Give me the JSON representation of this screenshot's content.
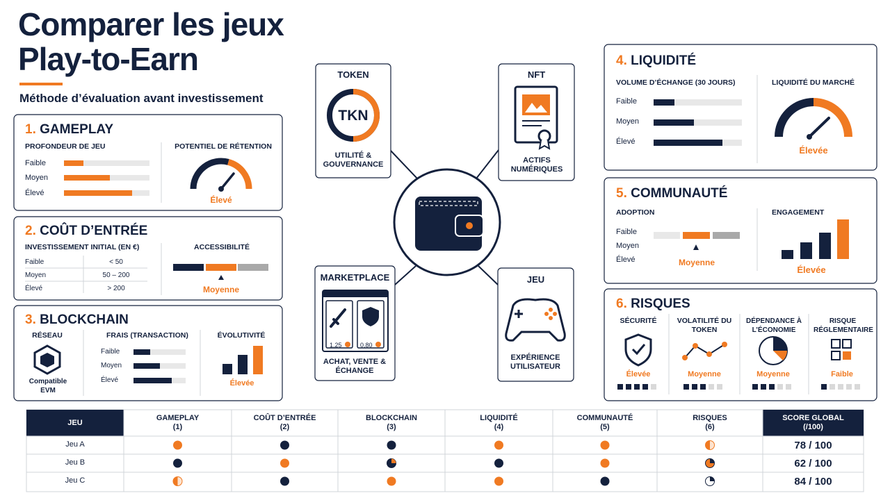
{
  "header": {
    "title_line1": "Comparer les jeux",
    "title_line2": "Play-to-Earn",
    "subtitle": "Méthode d’évaluation avant investissement"
  },
  "sections": [
    {
      "number": "1.",
      "title": "GAMEPLAY",
      "left_label": "PROFONDEUR DE JEU",
      "levels": [
        "Faible",
        "Moyen",
        "Élevé"
      ],
      "right_label": "POTENTIEL DE RÉTENTION",
      "rating": "Élevé"
    },
    {
      "number": "2.",
      "title": "COÛT D’ENTRÉE",
      "left_label": "INVESTISSEMENT INITIAL (EN €)",
      "rows": [
        [
          "Faible",
          "< 50"
        ],
        [
          "Moyen",
          "50 – 200"
        ],
        [
          "Élevé",
          "> 200"
        ]
      ],
      "right_label": "ACCESSIBILITÉ",
      "rating": "Moyenne"
    },
    {
      "number": "3.",
      "title": "BLOCKCHAIN",
      "network_label": "RÉSEAU",
      "network": "Compatible EVM",
      "left_label": "FRAIS (TRANSACTION)",
      "levels": [
        "Faible",
        "Moyen",
        "Élevé"
      ],
      "right_label": "ÉVOLUTIVITÉ",
      "rating": "Élevée"
    },
    {
      "number": "4.",
      "title": "LIQUIDITÉ",
      "left_label": "VOLUME D’ÉCHANGE (30 JOURS)",
      "levels": [
        "Faible",
        "Moyen",
        "Élevé"
      ],
      "right_label": "LIQUIDITÉ DU MARCHÉ",
      "rating": "Élevée"
    },
    {
      "number": "5.",
      "title": "COMMUNAUTÉ",
      "left_label": "ADOPTION",
      "levels": [
        "Faible",
        "Moyen",
        "Élevé"
      ],
      "left_rating": "Moyenne",
      "right_label": "ENGAGEMENT",
      "rating": "Élevée"
    },
    {
      "number": "6.",
      "title": "RISQUES",
      "items": [
        {
          "label": "SÉCURITÉ",
          "rating": "Élevée"
        },
        {
          "label": "VOLATILITÉ DU TOKEN",
          "rating": "Moyenne"
        },
        {
          "label": "DÉPENDANCE À L’ÉCONOMIE",
          "rating": "Moyenne"
        },
        {
          "label": "RISQUE RÉGLEMENTAIRE",
          "rating": "Faible"
        }
      ]
    }
  ],
  "hub": {
    "token": {
      "title": "TOKEN",
      "icon": "TKN",
      "caption": "UTILITÉ & GOUVERNANCE"
    },
    "nft": {
      "title": "NFT",
      "caption": "ACTIFS NUMÉRIQUES"
    },
    "marketplace": {
      "title": "MARKETPLACE",
      "prices": [
        "1,25",
        "0,80"
      ],
      "caption": "ACHAT, VENTE & ÉCHANGE"
    },
    "game": {
      "title": "JEU",
      "caption": "EXPÉRIENCE UTILISATEUR"
    }
  },
  "table": {
    "header": [
      {
        "label": "JEU"
      },
      {
        "label": "GAMEPLAY",
        "sub": "(1)"
      },
      {
        "label": "COÛT D’ENTRÉE",
        "sub": "(2)"
      },
      {
        "label": "BLOCKCHAIN",
        "sub": "(3)"
      },
      {
        "label": "LIQUIDITÉ",
        "sub": "(4)"
      },
      {
        "label": "COMMUNAUTÉ",
        "sub": "(5)"
      },
      {
        "label": "RISQUES",
        "sub": "(6)"
      },
      {
        "label": "SCORE GLOBAL",
        "sub": "(/100)"
      }
    ],
    "rows": [
      {
        "name": "Jeu A",
        "score": "78 / 100"
      },
      {
        "name": "Jeu B",
        "score": "62 / 100"
      },
      {
        "name": "Jeu C",
        "score": "84 / 100"
      }
    ]
  }
}
